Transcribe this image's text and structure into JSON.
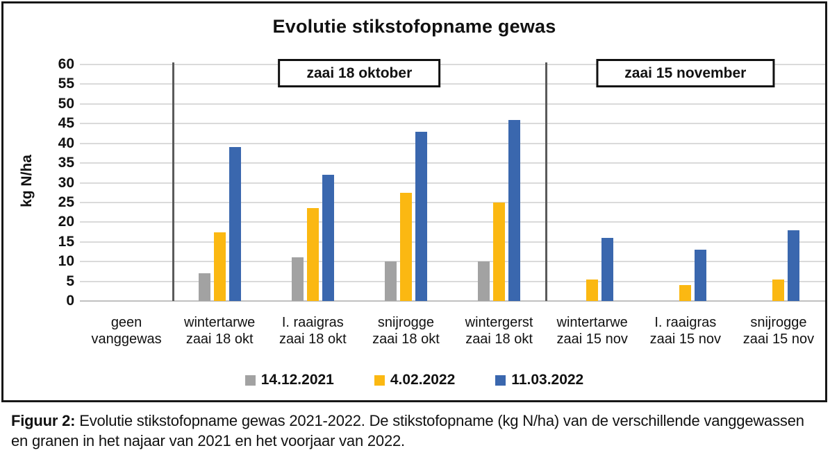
{
  "figure": {
    "caption_prefix": "Figuur 2:",
    "caption_body": " Evolutie stikstofopname gewas 2021-2022. De stikstofopname (kg N/ha) van de verschillende vanggewassen en granen in het najaar van 2021 en het voorjaar van 2022."
  },
  "chart_data": {
    "type": "bar",
    "title": "Evolutie stikstofopname gewas",
    "xlabel": "",
    "ylabel": "kg N/ha",
    "ylim": [
      0,
      60
    ],
    "ytick_step": 5,
    "grid": true,
    "legend_position": "bottom",
    "categories": [
      "geen\nvanggewas",
      "wintertarwe\nzaai 18 okt",
      "I. raaigras\nzaai 18 okt",
      "snijrogge\nzaai 18 okt",
      "wintergerst\nzaai 18 okt",
      "wintertarwe\nzaai 15 nov",
      "I. raaigras\nzaai 15 nov",
      "snijrogge\nzaai 15 nov"
    ],
    "series": [
      {
        "name": "14.12.2021",
        "color": "#a2a2a2",
        "values": [
          0,
          7,
          11,
          10,
          10,
          0,
          0,
          0
        ]
      },
      {
        "name": "4.02.2022",
        "color": "#fbb812",
        "values": [
          0,
          17.5,
          23.5,
          27.5,
          25,
          5.5,
          4,
          5.5
        ]
      },
      {
        "name": "11.03.2022",
        "color": "#3a67ae",
        "values": [
          0,
          39,
          32,
          43,
          46,
          16,
          13,
          18
        ]
      }
    ],
    "sections": [
      {
        "label": "zaai 18 oktober",
        "from": 1,
        "to": 4
      },
      {
        "label": "zaai 15 november",
        "from": 5,
        "to": 7
      }
    ],
    "separators_after": [
      0,
      4
    ]
  }
}
